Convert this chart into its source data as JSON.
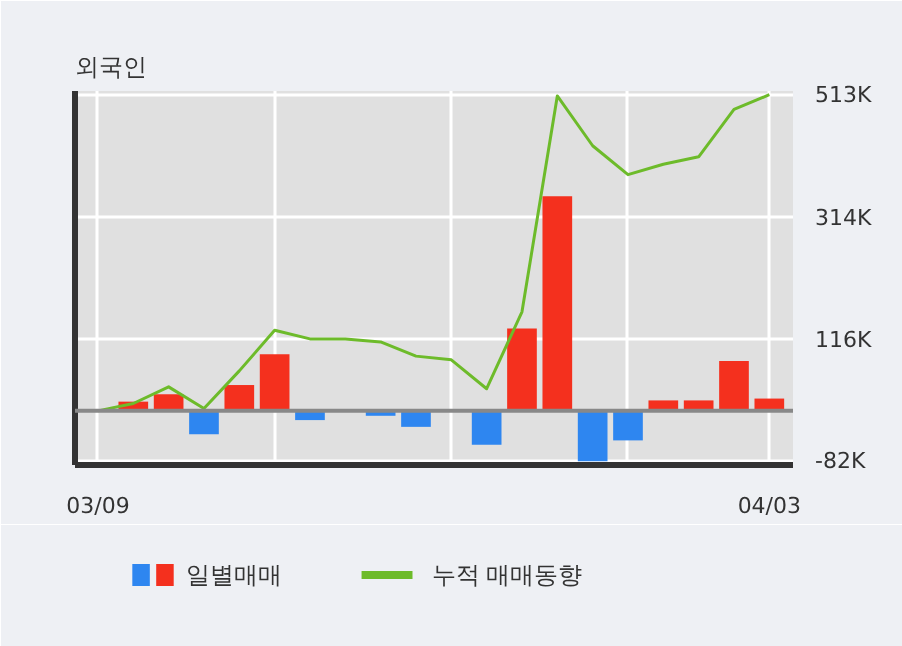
{
  "chart_data": {
    "type": "bar",
    "title": "외국인",
    "categories": [
      "03/09",
      null,
      null,
      null,
      null,
      null,
      null,
      null,
      null,
      null,
      null,
      null,
      null,
      null,
      null,
      null,
      null,
      null,
      null,
      "04/03"
    ],
    "series": [
      {
        "name": "일별매매",
        "colors": [
          "#f4301e",
          "#f4301e",
          "#f4301e",
          "#2e86f0",
          "#f4301e",
          "#f4301e",
          "#2e86f0",
          "#f4301e",
          "#2e86f0",
          "#2e86f0",
          "#f4301e",
          "#2e86f0",
          "#f4301e",
          "#f4301e",
          "#2e86f0",
          "#2e86f0",
          "#f4301e",
          "#f4301e",
          "#f4301e",
          "#f4301e"
        ],
        "values": [
          0,
          15,
          27,
          -38,
          42,
          92,
          -15,
          0,
          -8,
          -26,
          0,
          -55,
          134,
          349,
          -82,
          -48,
          17,
          17,
          81,
          20
        ]
      },
      {
        "name": "누적 매매동향",
        "type": "line",
        "color": "#6dbb2a",
        "values": [
          0,
          12,
          39,
          4,
          65,
          131,
          117,
          117,
          112,
          89,
          83,
          36,
          161,
          512,
          431,
          384,
          401,
          413,
          490,
          514
        ]
      }
    ],
    "ylim": [
      -88,
      520
    ],
    "yticks": [
      {
        "value": -82,
        "label": "-82K"
      },
      {
        "value": 116,
        "label": "116K"
      },
      {
        "value": 314,
        "label": "314K"
      },
      {
        "value": 513,
        "label": "513K"
      }
    ],
    "grid": true,
    "legend": "bottom"
  }
}
